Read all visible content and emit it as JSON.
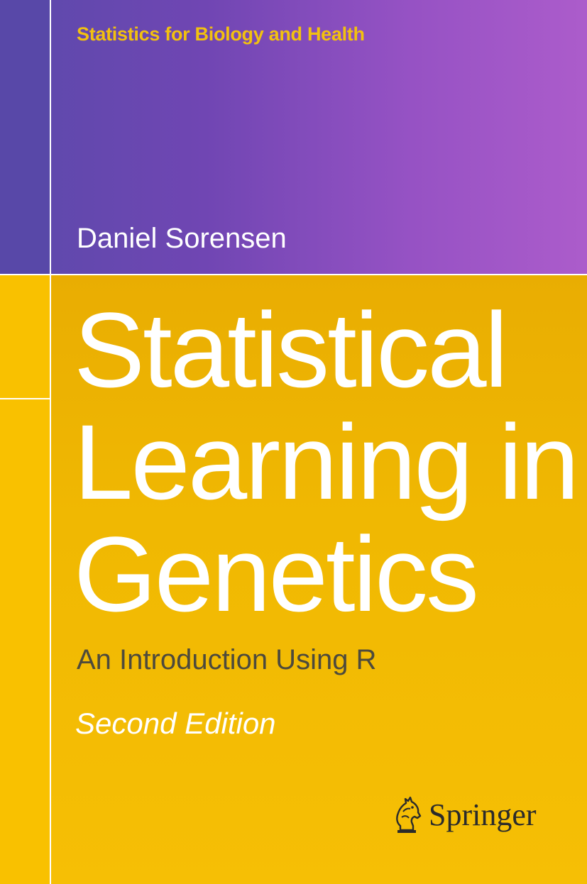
{
  "cover": {
    "series": "Statistics for Biology and Health",
    "author": "Daniel Sorensen",
    "title_lines": [
      "Statistical",
      "Learning in",
      "Genetics"
    ],
    "subtitle": "An Introduction Using R",
    "edition": "Second Edition",
    "publisher": "Springer",
    "publisher_logo_icon": "springer-horse-icon"
  },
  "colors": {
    "top_band": "#7046b3",
    "bottom_band": "#f6bf05",
    "series_text": "#f2c10f",
    "subtitle_text": "#4d4a3c",
    "rule_lines": "#ffffff"
  }
}
